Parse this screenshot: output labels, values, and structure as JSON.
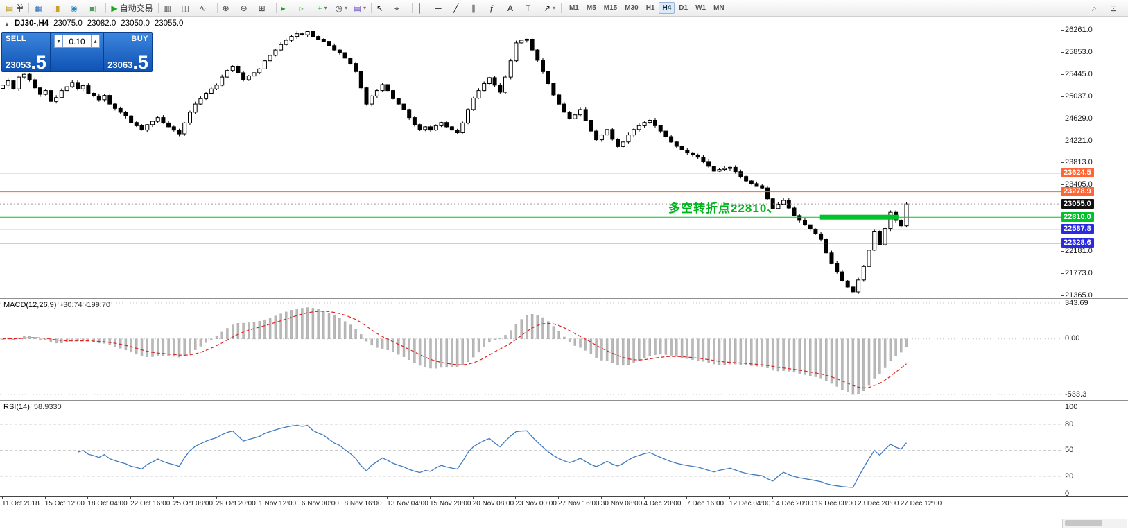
{
  "toolbar": {
    "items": [
      {
        "kind": "button",
        "name": "new-order-button",
        "glyph": "▤",
        "glyph_color": "#c9a227",
        "label": "单"
      },
      {
        "kind": "sep"
      },
      {
        "kind": "icon",
        "name": "market-watch-icon",
        "glyph": "▦",
        "glyph_color": "#3a78c2"
      },
      {
        "kind": "icon",
        "name": "data-window-icon",
        "glyph": "◨",
        "glyph_color": "#c9a227"
      },
      {
        "kind": "icon",
        "name": "navigator-icon",
        "glyph": "◉",
        "glyph_color": "#2e8bc0"
      },
      {
        "kind": "icon",
        "name": "terminal-icon",
        "glyph": "▣",
        "glyph_color": "#4f9d5d"
      },
      {
        "kind": "sep"
      },
      {
        "kind": "button",
        "name": "autotrading-button",
        "glyph": "▶",
        "glyph_color": "#1fa51f",
        "label": "自动交易"
      },
      {
        "kind": "sep"
      },
      {
        "kind": "icon",
        "name": "bar-chart-icon",
        "glyph": "▥",
        "glyph_color": "#444444"
      },
      {
        "kind": "icon",
        "name": "candlestick-chart-icon",
        "glyph": "◫",
        "glyph_color": "#444444"
      },
      {
        "kind": "icon",
        "name": "line-chart-icon",
        "glyph": "∿",
        "glyph_color": "#444444"
      },
      {
        "kind": "sep"
      },
      {
        "kind": "icon",
        "name": "zoom-in-icon",
        "glyph": "⊕",
        "glyph_color": "#444444"
      },
      {
        "kind": "icon",
        "name": "zoom-out-icon",
        "glyph": "⊖",
        "glyph_color": "#444444"
      },
      {
        "kind": "icon",
        "name": "tile-windows-icon",
        "glyph": "⊞",
        "glyph_color": "#444444"
      },
      {
        "kind": "sep"
      },
      {
        "kind": "icon",
        "name": "auto-scroll-icon",
        "glyph": "▸",
        "glyph_color": "#1fa51f"
      },
      {
        "kind": "icon",
        "name": "chart-shift-icon",
        "glyph": "▹",
        "glyph_color": "#1fa51f"
      },
      {
        "kind": "icon",
        "name": "indicators-icon",
        "glyph": "+",
        "glyph_color": "#1fa51f",
        "dropdown": true
      },
      {
        "kind": "icon",
        "name": "periods-icon",
        "glyph": "◷",
        "glyph_color": "#444444",
        "dropdown": true
      },
      {
        "kind": "icon",
        "name": "templates-icon",
        "glyph": "▤",
        "glyph_color": "#7b5ec7",
        "dropdown": true
      },
      {
        "kind": "sep"
      },
      {
        "kind": "icon",
        "name": "cursor-icon",
        "glyph": "↖",
        "glyph_color": "#222222"
      },
      {
        "kind": "icon",
        "name": "crosshair-icon",
        "glyph": "⌖",
        "glyph_color": "#222222"
      },
      {
        "kind": "sep"
      },
      {
        "kind": "icon",
        "name": "vertical-line-icon",
        "glyph": "│",
        "glyph_color": "#222222"
      },
      {
        "kind": "icon",
        "name": "horizontal-line-icon",
        "glyph": "─",
        "glyph_color": "#222222"
      },
      {
        "kind": "icon",
        "name": "trendline-icon",
        "glyph": "╱",
        "glyph_color": "#222222"
      },
      {
        "kind": "icon",
        "name": "channel-icon",
        "glyph": "∥",
        "glyph_color": "#222222"
      },
      {
        "kind": "icon",
        "name": "fibonacci-icon",
        "glyph": "ƒ",
        "glyph_color": "#222222"
      },
      {
        "kind": "icon",
        "name": "text-icon",
        "glyph": "A",
        "glyph_color": "#222222"
      },
      {
        "kind": "icon",
        "name": "label-icon",
        "glyph": "T",
        "glyph_color": "#222222"
      },
      {
        "kind": "icon",
        "name": "arrows-icon",
        "glyph": "↗",
        "glyph_color": "#222222",
        "dropdown": true
      },
      {
        "kind": "sep"
      }
    ],
    "timeframes": {
      "items": [
        "M1",
        "M5",
        "M15",
        "M30",
        "H1",
        "H4",
        "D1",
        "W1",
        "MN"
      ],
      "active": "H4"
    },
    "right_items": [
      {
        "name": "find-symbol-icon",
        "glyph": "⌕"
      },
      {
        "name": "popup-prices-icon",
        "glyph": "⊡"
      }
    ]
  },
  "quote": {
    "marker": "▲",
    "symbol": "DJ30-,H4",
    "open": "23075.0",
    "high": "23082.0",
    "low": "23050.0",
    "close": "23055.0"
  },
  "trade_panel": {
    "sell_label": "SELL",
    "buy_label": "BUY",
    "sell_price_main": "23053",
    "sell_price_big": ".5",
    "buy_price_main": "23063",
    "buy_price_big": ".5",
    "volume": "0.10",
    "spinner_down": "▾",
    "spinner_up": "▴"
  },
  "annotation": {
    "text": "多空转折点22810、",
    "color": "#00b41e"
  },
  "chart_data": [
    {
      "type": "candlestick",
      "title": "DJ30-,H4",
      "y_axis": {
        "top": 26516,
        "bottom": 21314,
        "ticks": [
          26261,
          25853,
          25445,
          25037,
          24629,
          24221,
          23813,
          23405,
          22997,
          22589,
          22181,
          21773,
          21365
        ]
      },
      "candle_area_frac": 0.857,
      "closes": [
        25250,
        25330,
        25180,
        25400,
        25450,
        25350,
        25200,
        25080,
        25150,
        24950,
        25020,
        25150,
        25220,
        25300,
        25180,
        25240,
        25100,
        25050,
        24980,
        25060,
        24900,
        24820,
        24750,
        24680,
        24560,
        24500,
        24420,
        24520,
        24580,
        24650,
        24550,
        24480,
        24420,
        24350,
        24550,
        24750,
        24900,
        25000,
        25100,
        25180,
        25250,
        25400,
        25520,
        25600,
        25480,
        25350,
        25420,
        25480,
        25550,
        25700,
        25800,
        25900,
        26000,
        26080,
        26150,
        26200,
        26180,
        26240,
        26150,
        26100,
        26060,
        25980,
        25900,
        25850,
        25750,
        25650,
        25500,
        25200,
        24900,
        25050,
        25150,
        25260,
        25150,
        25000,
        24900,
        24800,
        24650,
        24520,
        24430,
        24480,
        24420,
        24500,
        24560,
        24480,
        24420,
        24370,
        24550,
        24800,
        25010,
        25150,
        25280,
        25390,
        25250,
        25120,
        25400,
        25700,
        26030,
        26080,
        26100,
        25900,
        25710,
        25500,
        25280,
        25070,
        24900,
        24750,
        24630,
        24700,
        24800,
        24600,
        24400,
        24240,
        24330,
        24430,
        24250,
        24115,
        24200,
        24330,
        24430,
        24500,
        24560,
        24600,
        24500,
        24400,
        24300,
        24200,
        24120,
        24050,
        24000,
        23960,
        23920,
        23840,
        23750,
        23660,
        23690,
        23710,
        23730,
        23650,
        23560,
        23480,
        23430,
        23390,
        23350,
        23150,
        22970,
        23050,
        23120,
        22980,
        22840,
        22750,
        22670,
        22590,
        22500,
        22400,
        22150,
        21950,
        21800,
        21630,
        21520,
        21430,
        21650,
        21900,
        22200,
        22550,
        22300,
        22600,
        22900,
        22750,
        22650,
        23055
      ],
      "x_labels": [
        "11 Oct 2018",
        "15 Oct 12:00",
        "18 Oct 04:00",
        "22 Oct 16:00",
        "25 Oct 08:00",
        "29 Oct 20:00",
        "1 Nov 12:00",
        "6 Nov 00:00",
        "8 Nov 16:00",
        "13 Nov 04:00",
        "15 Nov 20:00",
        "20 Nov 08:00",
        "23 Nov 00:00",
        "27 Nov 16:00",
        "30 Nov 08:00",
        "4 Dec 20:00",
        "7 Dec 16:00",
        "12 Dec 04:00",
        "14 Dec 20:00",
        "19 Dec 08:00",
        "23 Dec 20:00",
        "27 Dec 12:00"
      ],
      "hlines": [
        {
          "price": 23624.5,
          "label": "23624.5",
          "color": "#ff6633",
          "style": "solid"
        },
        {
          "price": 23278.9,
          "label": "23278.9",
          "color": "#ff6633",
          "style": "solid"
        },
        {
          "price": 23055.0,
          "label": "23055.0",
          "color": "#111111",
          "style": "current"
        },
        {
          "price": 22810.0,
          "label": "22810.0",
          "color": "#00c22a",
          "style": "solid",
          "thick_segment": {
            "x_start": 0.773,
            "x_end": 0.847,
            "height": 7
          }
        },
        {
          "price": 22587.8,
          "label": "22587.8",
          "color": "#2a2ae0",
          "style": "solid"
        },
        {
          "price": 22328.6,
          "label": "22328.6",
          "color": "#2a2ae0",
          "style": "solid"
        }
      ]
    },
    {
      "type": "bar",
      "name": "MACD(12,26,9)",
      "display_values": "-30.74 -199.70",
      "fast": 12,
      "slow": 26,
      "signal": 9,
      "y_ticks": [
        "343.69",
        "0.00",
        "-533.3"
      ],
      "histogram_color": "#b9b9b9",
      "signal_color": "#e02020"
    },
    {
      "type": "line",
      "name": "RSI(14)",
      "display_value": "58.9330",
      "period": 14,
      "levels": [
        80,
        50,
        20
      ],
      "y_ticks": [
        "100",
        "80",
        "50",
        "20",
        "0"
      ],
      "line_color": "#3f7ac1"
    }
  ]
}
